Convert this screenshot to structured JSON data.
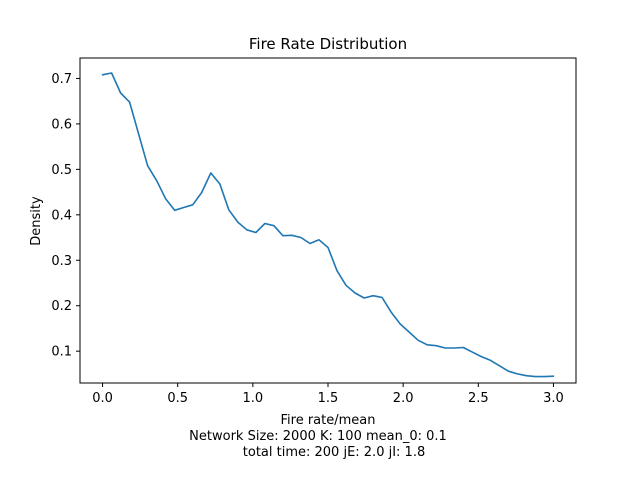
{
  "chart_data": {
    "type": "line",
    "title": "Fire Rate Distribution",
    "xlabel": "Fire rate/mean",
    "ylabel": "Density",
    "xlim": [
      -0.15,
      3.15
    ],
    "ylim": [
      0.03,
      0.745
    ],
    "xticks": [
      0.0,
      0.5,
      1.0,
      1.5,
      2.0,
      2.5,
      3.0
    ],
    "xtick_labels": [
      "0.0",
      "0.5",
      "1.0",
      "1.5",
      "2.0",
      "2.5",
      "3.0"
    ],
    "yticks": [
      0.1,
      0.2,
      0.3,
      0.4,
      0.5,
      0.6,
      0.7
    ],
    "ytick_labels": [
      "0.1",
      "0.2",
      "0.3",
      "0.4",
      "0.5",
      "0.6",
      "0.7"
    ],
    "line_color": "#1f77b4",
    "grid": false,
    "notes": [
      "Network Size: 2000  K: 100  mean_0: 0.1",
      "total time: 200   jE: 2.0   jI: 1.8"
    ],
    "series": [
      {
        "name": "density",
        "x": [
          0.0,
          0.06,
          0.12,
          0.18,
          0.24,
          0.3,
          0.36,
          0.42,
          0.48,
          0.54,
          0.6,
          0.66,
          0.72,
          0.78,
          0.84,
          0.9,
          0.96,
          1.02,
          1.08,
          1.14,
          1.2,
          1.26,
          1.32,
          1.38,
          1.44,
          1.5,
          1.56,
          1.62,
          1.68,
          1.74,
          1.8,
          1.86,
          1.92,
          1.98,
          2.04,
          2.1,
          2.16,
          2.22,
          2.28,
          2.34,
          2.4,
          2.46,
          2.52,
          2.58,
          2.64,
          2.7,
          2.76,
          2.82,
          2.88,
          2.94,
          3.0
        ],
        "y": [
          0.708,
          0.712,
          0.668,
          0.648,
          0.578,
          0.508,
          0.475,
          0.435,
          0.41,
          0.416,
          0.422,
          0.449,
          0.492,
          0.468,
          0.411,
          0.384,
          0.367,
          0.361,
          0.381,
          0.376,
          0.354,
          0.355,
          0.35,
          0.337,
          0.345,
          0.328,
          0.277,
          0.245,
          0.228,
          0.217,
          0.222,
          0.218,
          0.186,
          0.16,
          0.142,
          0.124,
          0.114,
          0.112,
          0.107,
          0.107,
          0.108,
          0.098,
          0.088,
          0.08,
          0.068,
          0.056,
          0.05,
          0.046,
          0.044,
          0.044,
          0.045
        ]
      }
    ]
  }
}
